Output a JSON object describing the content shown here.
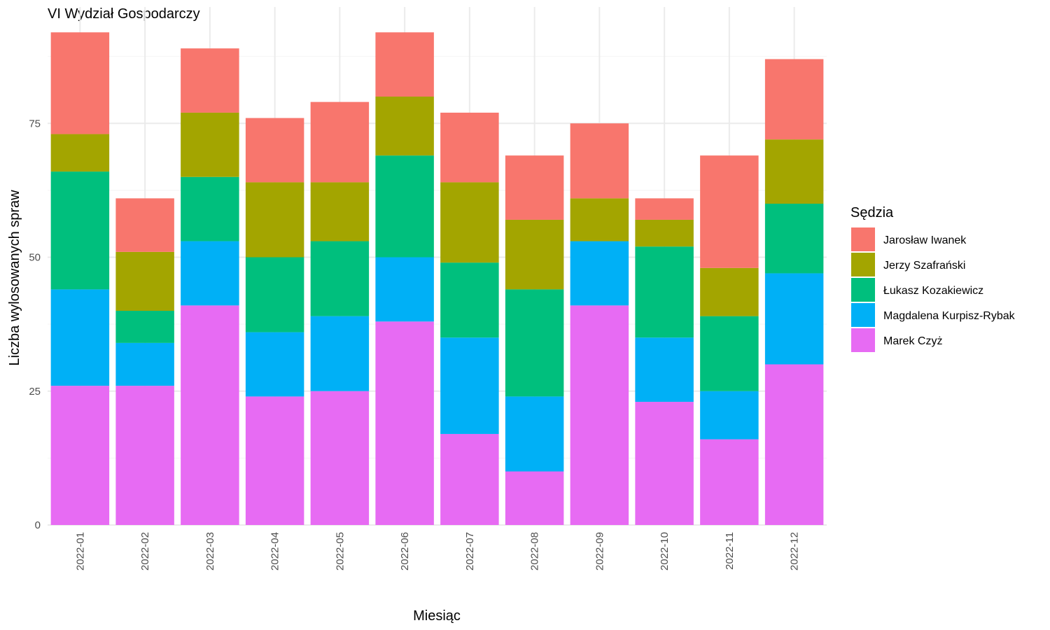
{
  "chart_data": {
    "type": "bar",
    "stacked": true,
    "title": "VI Wydział Gospodarczy",
    "xlabel": "Miesiąc",
    "ylabel": "Liczba wylosowanych spraw",
    "ylim": [
      0,
      96
    ],
    "yticks": [
      0,
      25,
      50,
      75
    ],
    "grid": true,
    "legend": {
      "title": "Sędzia",
      "position": "right"
    },
    "categories": [
      "2022-01",
      "2022-02",
      "2022-03",
      "2022-04",
      "2022-05",
      "2022-06",
      "2022-07",
      "2022-08",
      "2022-09",
      "2022-10",
      "2022-11",
      "2022-12"
    ],
    "stack_order_bottom_to_top": [
      "Marek Czyż",
      "Magdalena Kurpisz-Rybak",
      "Łukasz Kozakiewicz",
      "Jerzy Szafrański",
      "Jarosław Iwanek"
    ],
    "series": [
      {
        "name": "Jarosław Iwanek",
        "color": "#F8766D",
        "values": [
          19,
          10,
          12,
          12,
          15,
          12,
          13,
          12,
          14,
          4,
          21,
          15
        ]
      },
      {
        "name": "Jerzy Szafrański",
        "color": "#A3A500",
        "values": [
          7,
          11,
          12,
          14,
          11,
          11,
          15,
          13,
          8,
          5,
          9,
          12
        ]
      },
      {
        "name": "Łukasz Kozakiewicz",
        "color": "#00BF7D",
        "values": [
          22,
          6,
          12,
          14,
          14,
          19,
          14,
          20,
          0,
          17,
          14,
          13
        ]
      },
      {
        "name": "Magdalena Kurpisz-Rybak",
        "color": "#00B0F6",
        "values": [
          18,
          8,
          12,
          12,
          14,
          12,
          18,
          14,
          12,
          12,
          9,
          17
        ]
      },
      {
        "name": "Marek Czyż",
        "color": "#E76BF3",
        "values": [
          26,
          26,
          41,
          24,
          25,
          38,
          17,
          10,
          41,
          23,
          16,
          30
        ]
      }
    ]
  }
}
